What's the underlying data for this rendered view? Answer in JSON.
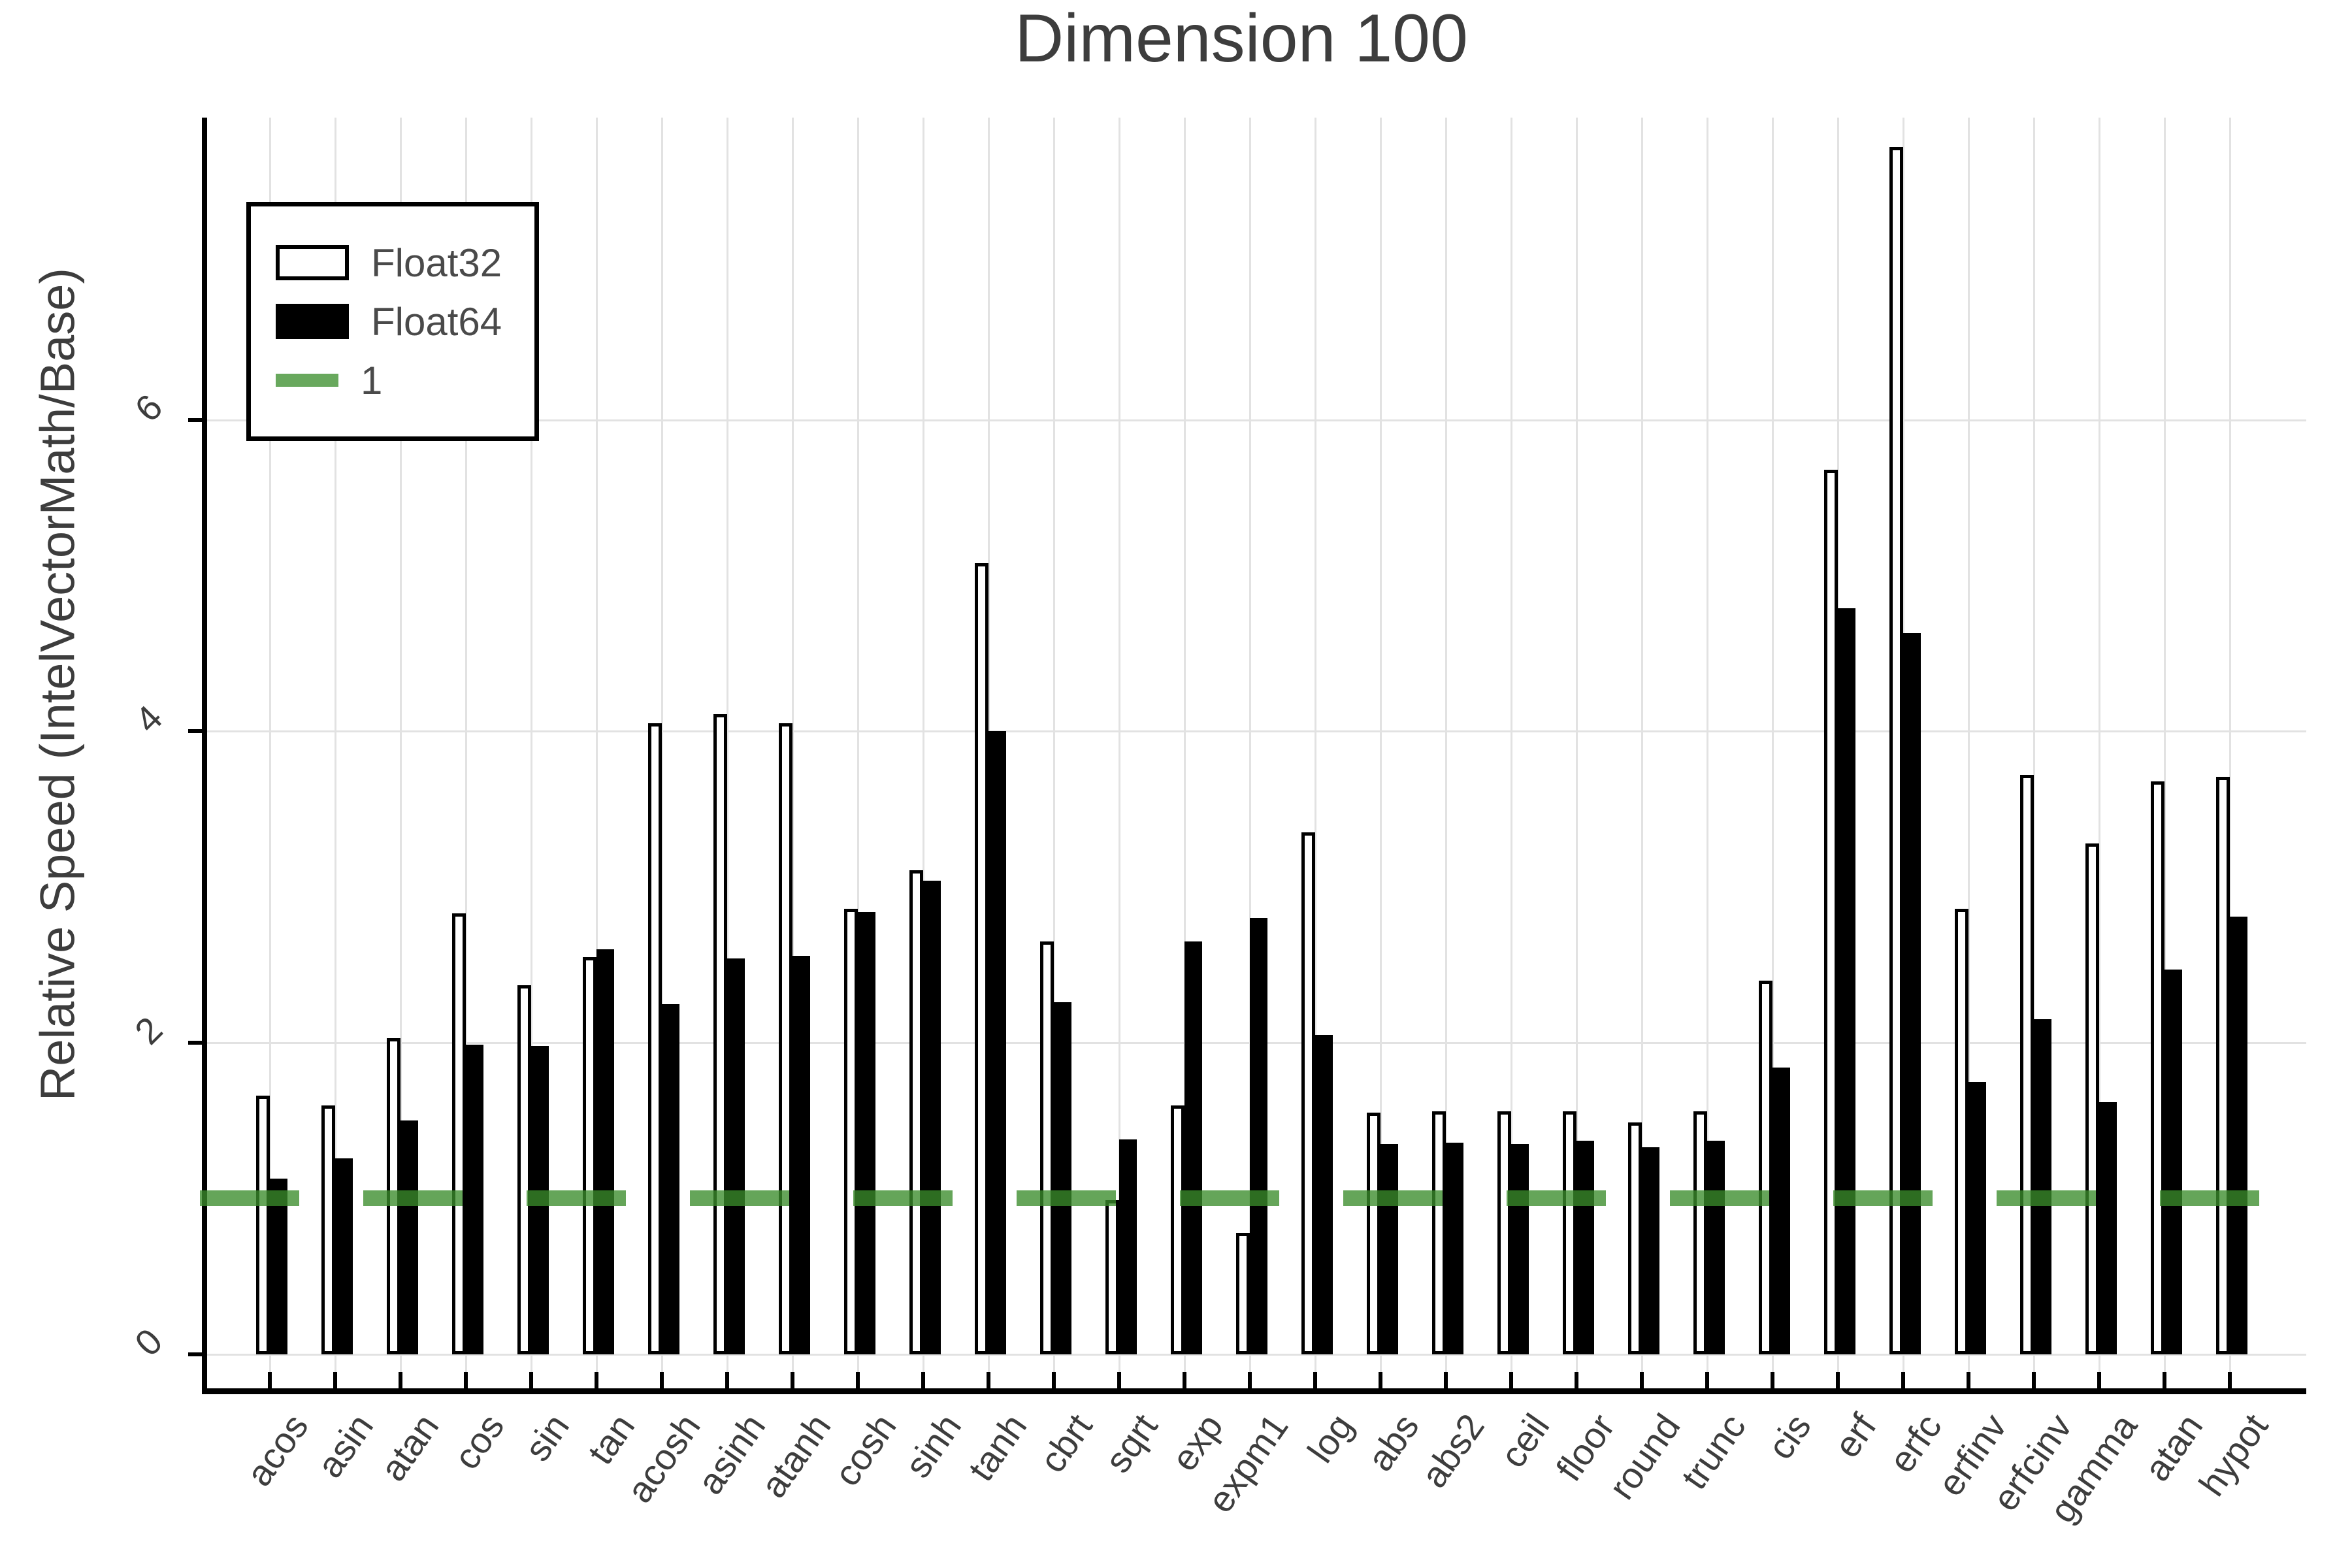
{
  "title": "Dimension 100",
  "y_axis": {
    "label": "Relative Speed (IntelVectorMath/Base)",
    "tick_labels": [
      "0",
      "2",
      "4",
      "6"
    ]
  },
  "legend": {
    "items": [
      {
        "label": "Float32",
        "swatch": "white-bar"
      },
      {
        "label": "Float64",
        "swatch": "black-bar"
      },
      {
        "label": "1",
        "swatch": "green-line"
      }
    ]
  },
  "colors": {
    "float32_fill": "#ffffff",
    "float64_fill": "#000000",
    "bar_stroke": "#000000",
    "reference_green": "#3a8c2a",
    "reference_green_legend": "#68a85d",
    "grid": "#e2e2e2",
    "text": "#3d3d3d"
  },
  "chart_data": {
    "type": "bar",
    "title": "Dimension 100",
    "xlabel": "",
    "ylabel": "Relative Speed (IntelVectorMath/Base)",
    "categories": [
      "acos",
      "asin",
      "atan",
      "cos",
      "sin",
      "tan",
      "acosh",
      "asinh",
      "atanh",
      "cosh",
      "sinh",
      "tanh",
      "cbrt",
      "sqrt",
      "exp",
      "expm1",
      "log",
      "abs",
      "abs2",
      "ceil",
      "floor",
      "round",
      "trunc",
      "cis",
      "erf",
      "erfc",
      "erfinv",
      "erfcinv",
      "gamma",
      "atan",
      "hypot"
    ],
    "series": [
      {
        "name": "Float32",
        "values": [
          1.66,
          1.6,
          2.03,
          2.83,
          2.37,
          2.55,
          4.05,
          4.11,
          4.05,
          2.86,
          3.11,
          5.08,
          2.65,
          0.99,
          1.6,
          0.78,
          3.35,
          1.55,
          1.56,
          1.56,
          1.56,
          1.49,
          1.56,
          2.4,
          5.68,
          7.75,
          2.86,
          3.72,
          3.28,
          3.68,
          3.71
        ]
      },
      {
        "name": "Float64",
        "values": [
          1.13,
          1.26,
          1.5,
          1.99,
          1.98,
          2.6,
          2.25,
          2.54,
          2.56,
          2.84,
          3.04,
          4.0,
          2.26,
          1.38,
          2.65,
          2.8,
          2.05,
          1.35,
          1.36,
          1.35,
          1.37,
          1.33,
          1.37,
          1.84,
          4.79,
          4.63,
          1.75,
          2.15,
          1.62,
          2.47,
          2.81
        ]
      }
    ],
    "reference_line": {
      "label": "1",
      "value": 1,
      "style": "dashed",
      "color": "#3a8c2a"
    },
    "yticks": [
      0,
      2,
      4,
      6
    ],
    "ylim": [
      -0.22,
      7.94
    ],
    "grid": true,
    "legend_position": "top-left"
  }
}
